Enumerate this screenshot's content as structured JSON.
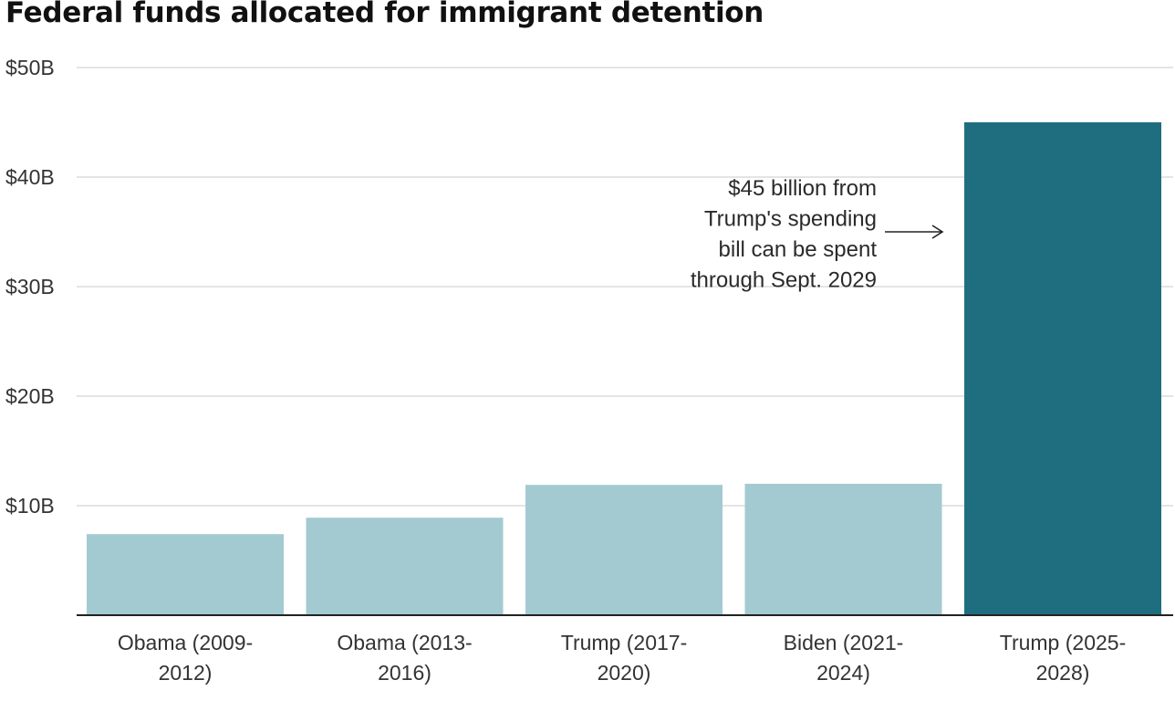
{
  "chart_data": {
    "type": "bar",
    "title": "Federal funds allocated for immigrant detention",
    "categories": [
      [
        "Obama (2009-",
        "2012)"
      ],
      [
        "Obama (2013-",
        "2016)"
      ],
      [
        "Trump (2017-",
        "2020)"
      ],
      [
        "Biden (2021-",
        "2024)"
      ],
      [
        "Trump (2025-",
        "2028)"
      ]
    ],
    "values": [
      7.4,
      8.9,
      11.9,
      12.0,
      45.0
    ],
    "highlight_index": 4,
    "colors": {
      "bar": "#a3cad1",
      "highlight": "#1f6e80",
      "grid": "#dcdcdc",
      "axis": "#222222"
    },
    "ylim": [
      0,
      50
    ],
    "yticks": [
      10,
      20,
      30,
      40,
      50
    ],
    "ytick_labels": [
      "$10B",
      "$20B",
      "$30B",
      "$40B",
      "$50B"
    ],
    "xlabel": "",
    "ylabel": "",
    "grid": true,
    "annotation": {
      "lines": [
        "$45 billion from",
        "Trump's spending",
        "bill can be spent",
        "through Sept. 2029"
      ],
      "target_index": 4,
      "arrow": "right"
    }
  }
}
